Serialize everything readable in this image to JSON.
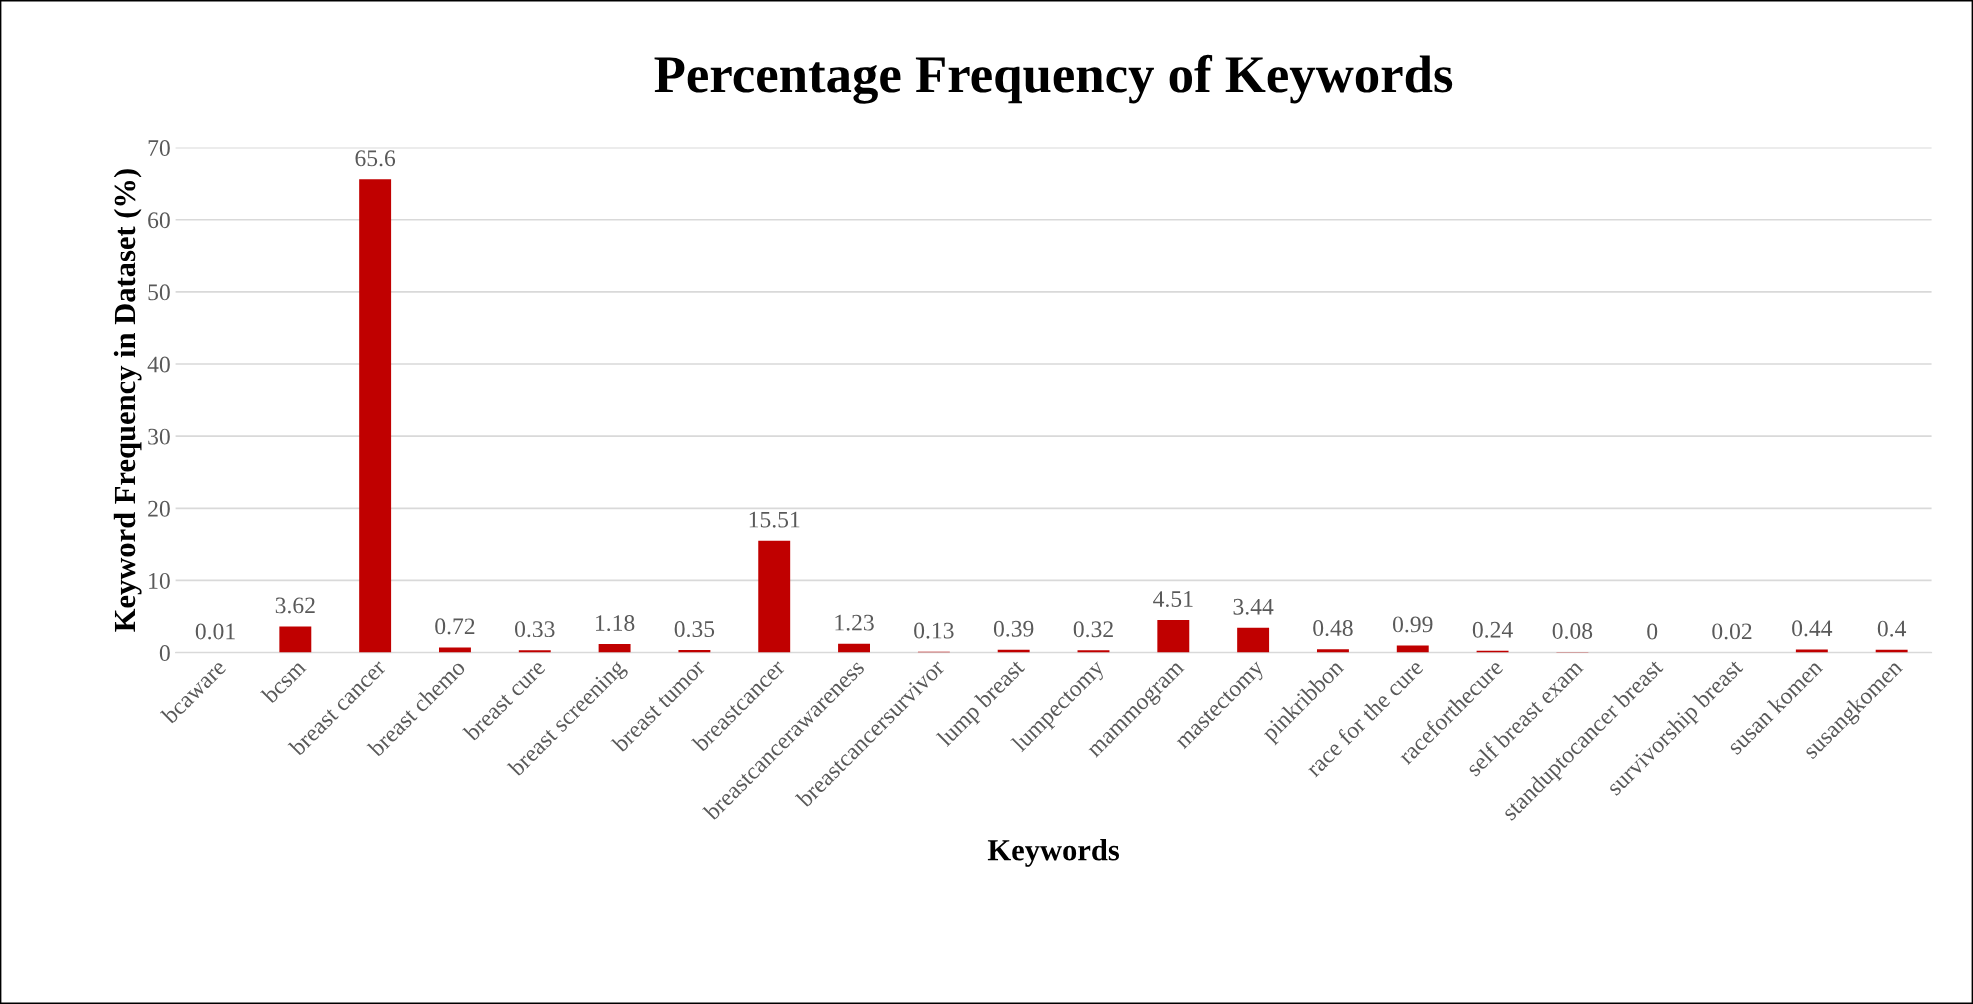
{
  "chart_data": {
    "type": "bar",
    "title": "Percentage Frequency of Keywords",
    "xlabel": "Keywords",
    "ylabel": "Keyword Frequency in Dataset (%)",
    "categories": [
      "bcaware",
      "bcsm",
      "breast cancer",
      "breast chemo",
      "breast cure",
      "breast screening",
      "breast tumor",
      "breastcancer",
      "breastcancerawareness",
      "breastcancersurvivor",
      "lump breast",
      "lumpectomy",
      "mammogram",
      "mastectomy",
      "pinkribbon",
      "race for the cure",
      "raceforthecure",
      "self breast exam",
      "standuptocancer breast",
      "survivorship breast",
      "susan komen",
      "susangkomen"
    ],
    "values": [
      0.01,
      3.62,
      65.6,
      0.72,
      0.33,
      1.18,
      0.35,
      15.51,
      1.23,
      0.13,
      0.39,
      0.32,
      4.51,
      3.44,
      0.48,
      0.99,
      0.24,
      0.08,
      0,
      0.02,
      0.44,
      0.4
    ],
    "color": "#c00000",
    "ylim": [
      0,
      70
    ],
    "yticks": [
      0,
      10,
      20,
      30,
      40,
      50,
      60,
      70
    ],
    "grid": "y",
    "data_labels": true
  }
}
